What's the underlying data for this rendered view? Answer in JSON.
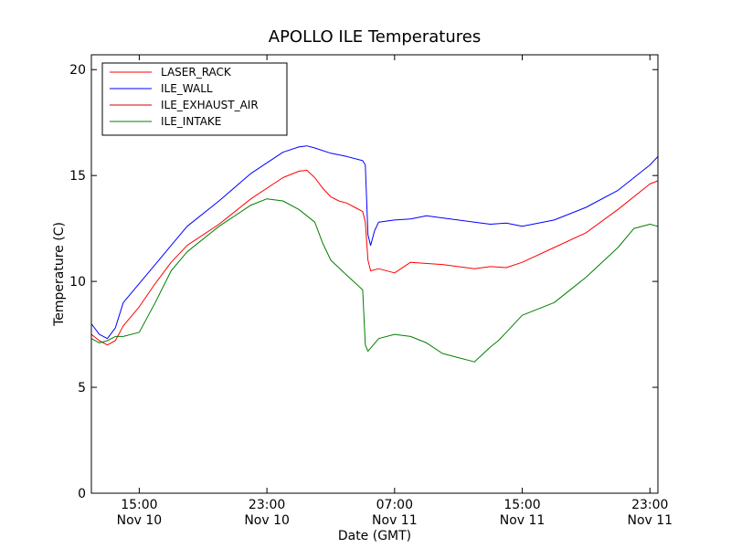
{
  "chart_data": {
    "type": "line",
    "title": "APOLLO ILE Temperatures",
    "xlabel": "Date (GMT)",
    "ylabel": "Temperature (C)",
    "x_unit": "datetime (GMT)",
    "xlim": [
      "Nov 10 12:00",
      "Nov 11 23:30"
    ],
    "ylim": [
      0,
      20.7
    ],
    "yticks": [
      0,
      5,
      10,
      15,
      20
    ],
    "xticks": [
      {
        "time": "Nov 10 15:00",
        "line1": "15:00",
        "line2": "Nov 10"
      },
      {
        "time": "Nov 10 23:00",
        "line1": "23:00",
        "line2": "Nov 10"
      },
      {
        "time": "Nov 11 07:00",
        "line1": "07:00",
        "line2": "Nov 11"
      },
      {
        "time": "Nov 11 15:00",
        "line1": "15:00",
        "line2": "Nov 11"
      },
      {
        "time": "Nov 11 23:00",
        "line1": "23:00",
        "line2": "Nov 11"
      }
    ],
    "grid": false,
    "legend_position": "top-left",
    "series": [
      {
        "name": "LASER_RACK",
        "color": "#ff0000",
        "x": [
          "Nov 10 12:00",
          "Nov 10 12:30",
          "Nov 10 13:00",
          "Nov 10 13:30",
          "Nov 10 14:00",
          "Nov 10 15:00",
          "Nov 10 16:00",
          "Nov 10 17:00",
          "Nov 10 18:00",
          "Nov 10 20:00",
          "Nov 10 22:00",
          "Nov 11 00:00",
          "Nov 11 01:00",
          "Nov 11 01:30",
          "Nov 11 02:00",
          "Nov 11 02:30",
          "Nov 11 03:00",
          "Nov 11 03:30",
          "Nov 11 04:00",
          "Nov 11 04:30",
          "Nov 11 05:00",
          "Nov 11 05:10",
          "Nov 11 05:20",
          "Nov 11 05:30",
          "Nov 11 06:00",
          "Nov 11 07:00",
          "Nov 11 08:00",
          "Nov 11 10:00",
          "Nov 11 12:00",
          "Nov 11 13:00",
          "Nov 11 14:00",
          "Nov 11 15:00",
          "Nov 11 17:00",
          "Nov 11 19:00",
          "Nov 11 21:00",
          "Nov 11 23:00",
          "Nov 11 23:30"
        ],
        "y": [
          7.5,
          7.2,
          7.0,
          7.2,
          7.9,
          8.8,
          9.9,
          10.9,
          11.7,
          12.7,
          13.9,
          14.9,
          15.2,
          15.25,
          14.9,
          14.4,
          14.0,
          13.8,
          13.7,
          13.5,
          13.3,
          12.8,
          11.0,
          10.5,
          10.6,
          10.4,
          10.9,
          10.8,
          10.6,
          10.7,
          10.65,
          10.9,
          11.6,
          12.3,
          13.4,
          14.6,
          14.75
        ]
      },
      {
        "name": "ILE_WALL",
        "color": "#0000ff",
        "x": [
          "Nov 10 12:00",
          "Nov 10 12:30",
          "Nov 10 13:00",
          "Nov 10 13:30",
          "Nov 10 14:00",
          "Nov 10 15:00",
          "Nov 10 16:00",
          "Nov 10 17:00",
          "Nov 10 18:00",
          "Nov 10 20:00",
          "Nov 10 22:00",
          "Nov 11 00:00",
          "Nov 11 01:00",
          "Nov 11 01:30",
          "Nov 11 02:00",
          "Nov 11 03:00",
          "Nov 11 04:00",
          "Nov 11 05:00",
          "Nov 11 05:10",
          "Nov 11 05:20",
          "Nov 11 05:30",
          "Nov 11 05:45",
          "Nov 11 06:00",
          "Nov 11 07:00",
          "Nov 11 08:00",
          "Nov 11 09:00",
          "Nov 11 10:00",
          "Nov 11 12:00",
          "Nov 11 13:00",
          "Nov 11 14:00",
          "Nov 11 15:00",
          "Nov 11 17:00",
          "Nov 11 19:00",
          "Nov 11 21:00",
          "Nov 11 23:00",
          "Nov 11 23:30"
        ],
        "y": [
          8.0,
          7.5,
          7.3,
          7.8,
          9.0,
          9.9,
          10.8,
          11.7,
          12.6,
          13.8,
          15.1,
          16.1,
          16.35,
          16.4,
          16.3,
          16.05,
          15.9,
          15.7,
          15.5,
          12.2,
          11.7,
          12.4,
          12.8,
          12.9,
          12.95,
          13.1,
          13.0,
          12.8,
          12.7,
          12.75,
          12.6,
          12.9,
          13.5,
          14.3,
          15.5,
          15.9
        ]
      },
      {
        "name": "ILE_EXHAUST_AIR",
        "color": "#cc0000",
        "x": [],
        "y": []
      },
      {
        "name": "ILE_INTAKE",
        "color": "#007f00",
        "x": [
          "Nov 10 12:00",
          "Nov 10 12:30",
          "Nov 10 13:00",
          "Nov 10 13:30",
          "Nov 10 14:00",
          "Nov 10 15:00",
          "Nov 10 16:00",
          "Nov 10 17:00",
          "Nov 10 18:00",
          "Nov 10 20:00",
          "Nov 10 22:00",
          "Nov 10 23:00",
          "Nov 11 00:00",
          "Nov 11 01:00",
          "Nov 11 02:00",
          "Nov 11 02:30",
          "Nov 11 03:00",
          "Nov 11 04:00",
          "Nov 11 05:00",
          "Nov 11 05:10",
          "Nov 11 05:20",
          "Nov 11 06:00",
          "Nov 11 07:00",
          "Nov 11 08:00",
          "Nov 11 09:00",
          "Nov 11 10:00",
          "Nov 11 11:00",
          "Nov 11 12:00",
          "Nov 11 13:00",
          "Nov 11 13:30",
          "Nov 11 14:00",
          "Nov 11 15:00",
          "Nov 11 17:00",
          "Nov 11 19:00",
          "Nov 11 21:00",
          "Nov 11 22:00",
          "Nov 11 23:00",
          "Nov 11 23:30"
        ],
        "y": [
          7.3,
          7.1,
          7.2,
          7.4,
          7.4,
          7.6,
          9.0,
          10.5,
          11.4,
          12.6,
          13.6,
          13.9,
          13.8,
          13.4,
          12.8,
          11.8,
          11.0,
          10.3,
          9.6,
          7.0,
          6.7,
          7.3,
          7.5,
          7.4,
          7.1,
          6.6,
          6.4,
          6.2,
          6.9,
          7.2,
          7.6,
          8.4,
          9.0,
          10.2,
          11.6,
          12.5,
          12.7,
          12.6
        ]
      }
    ]
  }
}
